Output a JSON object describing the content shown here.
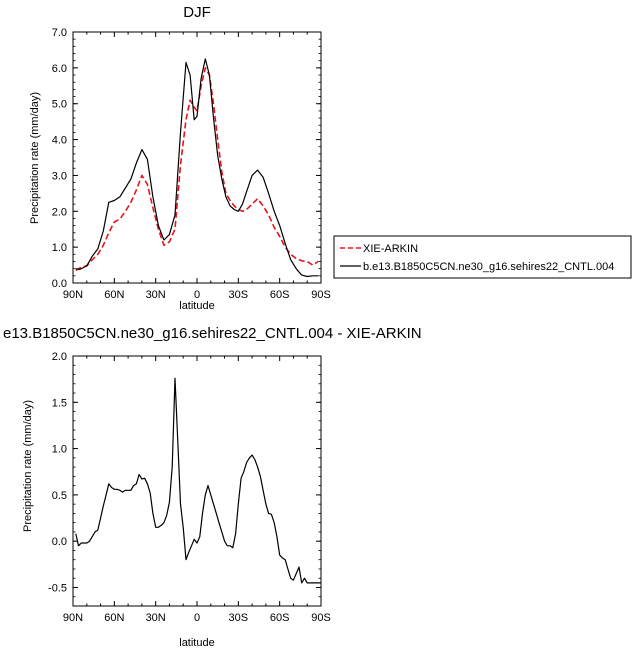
{
  "chart_data": [
    {
      "type": "line",
      "title": "DJF",
      "xlabel": "latitude",
      "ylabel": "Precipitation rate (mm/day)",
      "xlim": [
        90,
        -90
      ],
      "ylim": [
        0,
        7
      ],
      "xticks": [
        90,
        60,
        30,
        0,
        -30,
        -60,
        -90
      ],
      "xtick_labels": [
        "90N",
        "60N",
        "30N",
        "0",
        "30S",
        "60S",
        "90S"
      ],
      "yticks": [
        0,
        1,
        2,
        3,
        4,
        5,
        6,
        7
      ],
      "ytick_labels": [
        "0.0",
        "1.0",
        "2.0",
        "3.0",
        "4.0",
        "5.0",
        "6.0",
        "7.0"
      ],
      "legend_position": "right",
      "series": [
        {
          "name": "XIE-ARKIN",
          "color": "#e8141c",
          "dash": "dashed",
          "x": [
            88,
            85,
            80,
            76,
            72,
            68,
            64,
            60,
            56,
            52,
            48,
            44,
            40,
            36,
            32,
            28,
            24,
            20,
            16,
            12,
            8,
            5,
            2,
            0,
            -3,
            -6,
            -9,
            -12,
            -15,
            -18,
            -21,
            -24,
            -27,
            -30,
            -33,
            -36,
            -40,
            -44,
            -48,
            -52,
            -56,
            -60,
            -64,
            -68,
            -72,
            -76,
            -80,
            -84,
            -88
          ],
          "y": [
            0.35,
            0.42,
            0.48,
            0.65,
            0.8,
            1.05,
            1.4,
            1.7,
            1.78,
            2.0,
            2.25,
            2.6,
            3.0,
            2.75,
            2.1,
            1.5,
            1.05,
            1.15,
            1.5,
            3.3,
            4.55,
            5.1,
            4.9,
            4.8,
            5.5,
            6.0,
            5.8,
            5.0,
            4.0,
            3.1,
            2.5,
            2.3,
            2.15,
            2.05,
            2.0,
            2.05,
            2.2,
            2.35,
            2.15,
            1.9,
            1.55,
            1.3,
            1.0,
            0.8,
            0.68,
            0.62,
            0.6,
            0.5,
            0.6
          ]
        },
        {
          "name": "b.e13.B1850C5CN.ne30_g16.sehires22_CNTL.004",
          "color": "#000000",
          "dash": "solid",
          "x": [
            88,
            85,
            80,
            76,
            72,
            68,
            64,
            60,
            56,
            52,
            48,
            44,
            40,
            36,
            32,
            28,
            24,
            20,
            16,
            12,
            8,
            5,
            2,
            0,
            -3,
            -6,
            -9,
            -12,
            -15,
            -18,
            -21,
            -24,
            -27,
            -30,
            -33,
            -36,
            -40,
            -44,
            -48,
            -52,
            -56,
            -60,
            -64,
            -68,
            -72,
            -76,
            -80,
            -84,
            -88
          ],
          "y": [
            0.4,
            0.38,
            0.48,
            0.75,
            0.95,
            1.45,
            2.25,
            2.3,
            2.4,
            2.65,
            2.9,
            3.35,
            3.72,
            3.45,
            2.4,
            1.6,
            1.2,
            1.35,
            1.9,
            4.2,
            6.15,
            5.8,
            4.55,
            4.65,
            5.7,
            6.25,
            5.8,
            4.6,
            3.55,
            2.9,
            2.4,
            2.15,
            2.05,
            2.0,
            2.2,
            2.55,
            3.0,
            3.15,
            2.95,
            2.5,
            2.0,
            1.6,
            1.1,
            0.65,
            0.4,
            0.22,
            0.18,
            0.2,
            0.2
          ]
        }
      ]
    },
    {
      "type": "line",
      "title": "e13.B1850C5CN.ne30_g16.sehires22_CNTL.004 - XIE-ARKIN",
      "xlabel": "latitude",
      "ylabel": "Precipitation rate (mm/day)",
      "xlim": [
        90,
        -90
      ],
      "ylim": [
        -0.7,
        2.0
      ],
      "xticks": [
        90,
        60,
        30,
        0,
        -30,
        -60,
        -90
      ],
      "xtick_labels": [
        "90N",
        "60N",
        "30N",
        "0",
        "30S",
        "60S",
        "90S"
      ],
      "yticks": [
        -0.5,
        0,
        0.5,
        1.0,
        1.5,
        2.0
      ],
      "ytick_labels": [
        "-0.5",
        "0.0",
        "0.5",
        "1.0",
        "1.5",
        "2.0"
      ],
      "series": [
        {
          "name": "",
          "color": "#000000",
          "dash": "solid",
          "x": [
            88,
            86,
            84,
            82,
            80,
            78,
            76,
            74,
            72,
            70,
            68,
            66,
            64,
            62,
            60,
            58,
            56,
            54,
            52,
            50,
            48,
            46,
            44,
            42,
            40,
            38,
            36,
            34,
            32,
            30,
            28,
            26,
            24,
            22,
            20,
            18,
            16,
            14,
            12,
            10,
            8,
            6,
            4,
            2,
            0,
            -2,
            -4,
            -6,
            -8,
            -10,
            -12,
            -14,
            -16,
            -18,
            -20,
            -22,
            -24,
            -26,
            -28,
            -30,
            -32,
            -34,
            -36,
            -38,
            -40,
            -42,
            -44,
            -46,
            -48,
            -50,
            -52,
            -54,
            -56,
            -58,
            -60,
            -62,
            -64,
            -66,
            -68,
            -70,
            -72,
            -74,
            -76,
            -78,
            -80,
            -82,
            -84,
            -86,
            -88,
            -90
          ],
          "y": [
            0.08,
            -0.05,
            -0.02,
            -0.02,
            -0.02,
            0.0,
            0.05,
            0.1,
            0.12,
            0.25,
            0.38,
            0.5,
            0.62,
            0.58,
            0.56,
            0.56,
            0.55,
            0.53,
            0.55,
            0.55,
            0.55,
            0.6,
            0.62,
            0.72,
            0.67,
            0.68,
            0.62,
            0.52,
            0.3,
            0.15,
            0.15,
            0.17,
            0.2,
            0.28,
            0.42,
            0.8,
            1.76,
            1.1,
            0.4,
            0.15,
            -0.2,
            -0.12,
            -0.05,
            0.02,
            -0.02,
            0.05,
            0.3,
            0.5,
            0.6,
            0.5,
            0.4,
            0.3,
            0.2,
            0.1,
            0.0,
            -0.05,
            -0.05,
            -0.07,
            0.08,
            0.4,
            0.68,
            0.75,
            0.85,
            0.9,
            0.93,
            0.88,
            0.8,
            0.7,
            0.55,
            0.4,
            0.3,
            0.29,
            0.2,
            0.05,
            -0.15,
            -0.18,
            -0.2,
            -0.3,
            -0.4,
            -0.42,
            -0.35,
            -0.28,
            -0.45,
            -0.4,
            -0.45,
            -0.45,
            -0.45,
            -0.45,
            -0.45,
            -0.45
          ]
        }
      ]
    }
  ]
}
